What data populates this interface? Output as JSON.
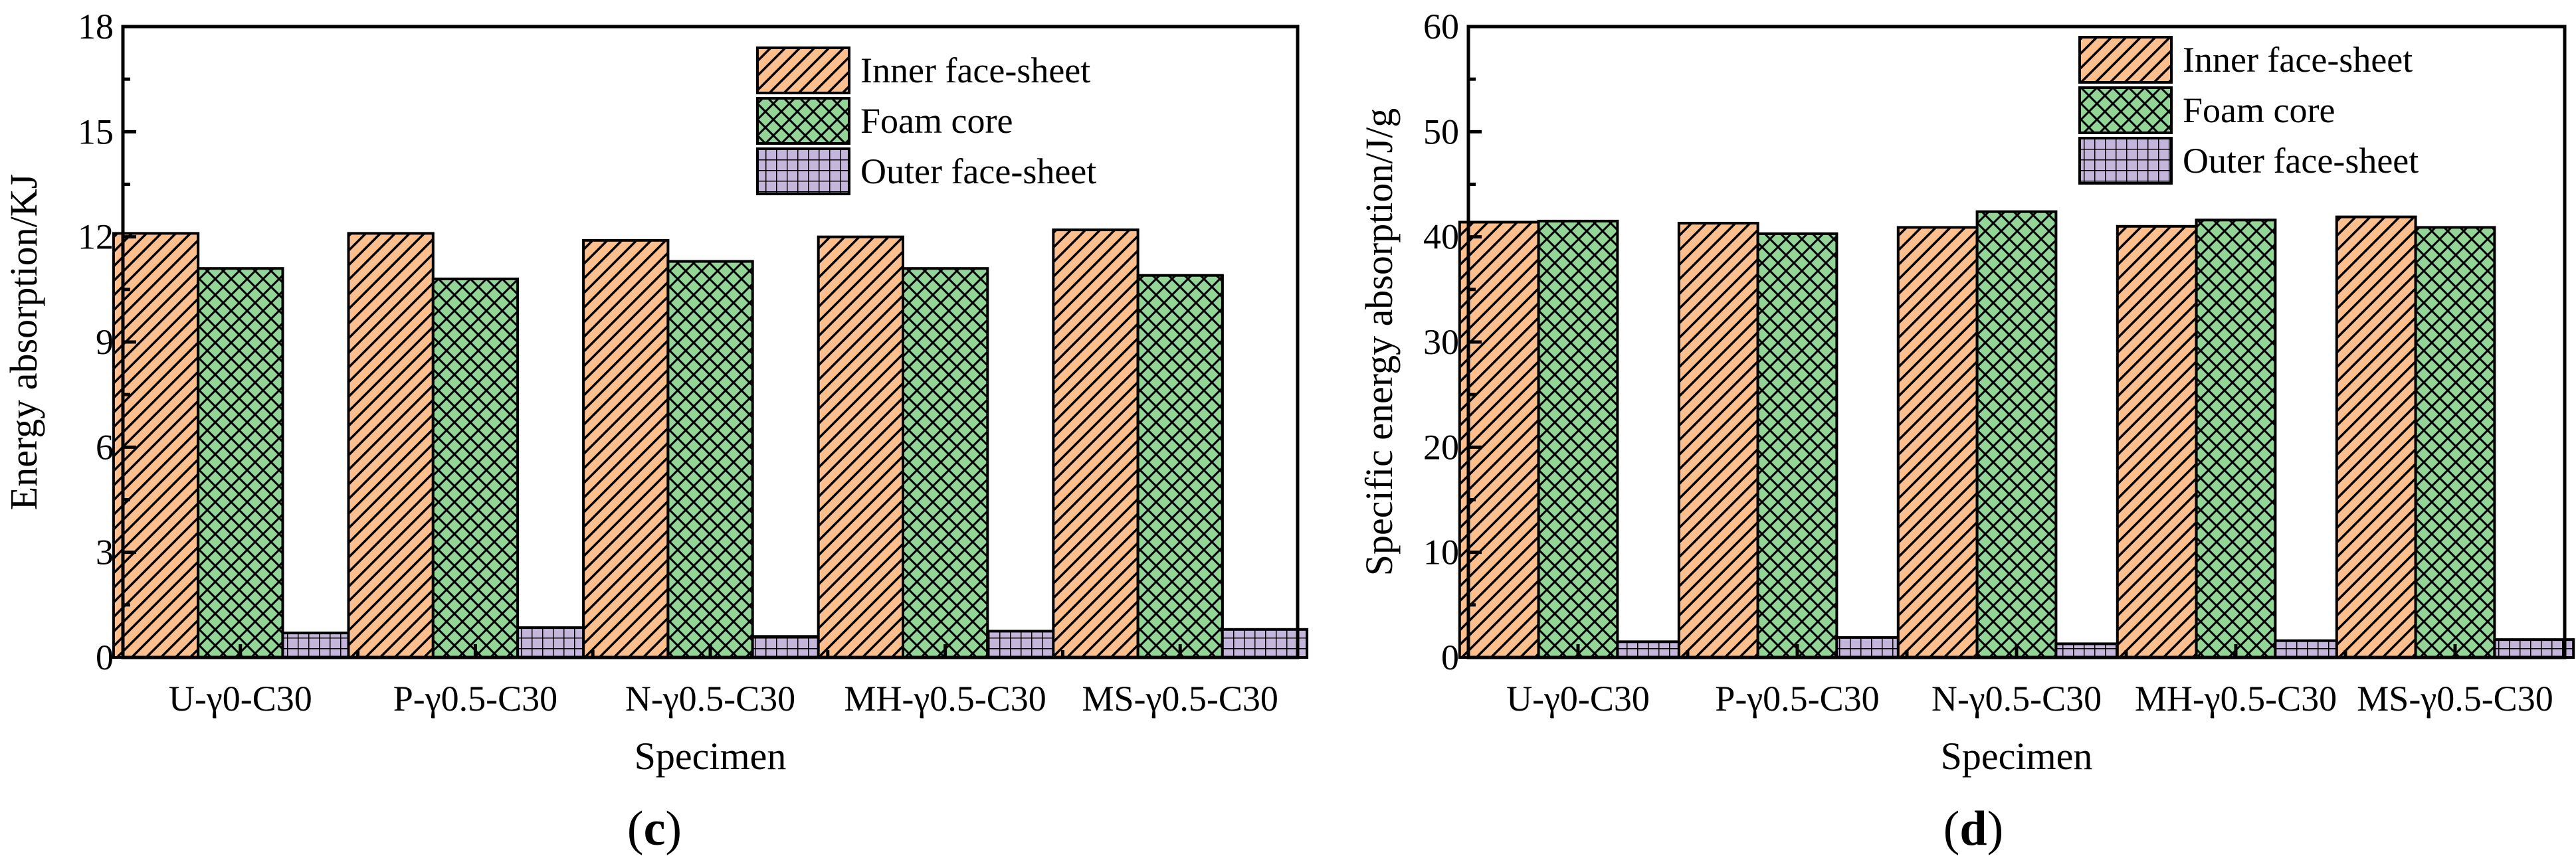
{
  "charts": [
    {
      "id": "c",
      "panel_label_prefix": "(",
      "panel_label_letter": "c",
      "panel_label_suffix": ")",
      "title": "",
      "xlabel": "Specimen",
      "ylabel": "Energy absorption/KJ",
      "ylim": [
        0,
        18
      ],
      "yticks": [
        "0",
        "3",
        "6",
        "9",
        "12",
        "15",
        "18"
      ],
      "ytick_values": [
        0,
        3,
        6,
        9,
        12,
        15,
        18
      ]
    },
    {
      "id": "d",
      "panel_label_prefix": "(",
      "panel_label_letter": "d",
      "panel_label_suffix": ")",
      "title": "",
      "xlabel": "Specimen",
      "ylabel": "Specific energy absorption/J/g",
      "ylim": [
        0,
        60
      ],
      "yticks": [
        "0",
        "10",
        "20",
        "30",
        "40",
        "50",
        "60"
      ],
      "ytick_values": [
        0,
        10,
        20,
        30,
        40,
        50,
        60
      ]
    }
  ],
  "chart_data": [
    {
      "type": "bar",
      "title": "",
      "xlabel": "Specimen",
      "ylabel": "Energy absorption/KJ",
      "ylim": [
        0,
        18
      ],
      "legend_position": "top-right",
      "categories": [
        "U-γ0-C30",
        "P-γ0.5-C30",
        "N-γ0.5-C30",
        "MH-γ0.5-C30",
        "MS-γ0.5-C30"
      ],
      "series": [
        {
          "name": "Inner face-sheet",
          "color": "#FDBF8E",
          "pattern": "diagonal-hatch",
          "values": [
            12.1,
            12.1,
            11.9,
            12.0,
            12.2
          ]
        },
        {
          "name": "Foam core",
          "color": "#93D497",
          "pattern": "cross-hatch",
          "values": [
            11.1,
            10.8,
            11.3,
            11.1,
            10.9
          ]
        },
        {
          "name": "Outer face-sheet",
          "color": "#C4B5DA",
          "pattern": "grid",
          "values": [
            0.7,
            0.85,
            0.6,
            0.75,
            0.8
          ]
        }
      ]
    },
    {
      "type": "bar",
      "title": "",
      "xlabel": "Specimen",
      "ylabel": "Specific energy absorption/J/g",
      "ylim": [
        0,
        60
      ],
      "legend_position": "top-right",
      "categories": [
        "U-γ0-C30",
        "P-γ0.5-C30",
        "N-γ0.5-C30",
        "MH-γ0.5-C30",
        "MS-γ0.5-C30"
      ],
      "series": [
        {
          "name": "Inner face-sheet",
          "color": "#FDBF8E",
          "pattern": "diagonal-hatch",
          "values": [
            41.4,
            41.3,
            40.9,
            41.0,
            41.9
          ]
        },
        {
          "name": "Foam core",
          "color": "#93D497",
          "pattern": "cross-hatch",
          "values": [
            41.5,
            40.3,
            42.4,
            41.6,
            40.9
          ]
        },
        {
          "name": "Outer face-sheet",
          "color": "#C4B5DA",
          "pattern": "grid",
          "values": [
            1.5,
            1.9,
            1.3,
            1.6,
            1.7
          ]
        }
      ]
    }
  ]
}
